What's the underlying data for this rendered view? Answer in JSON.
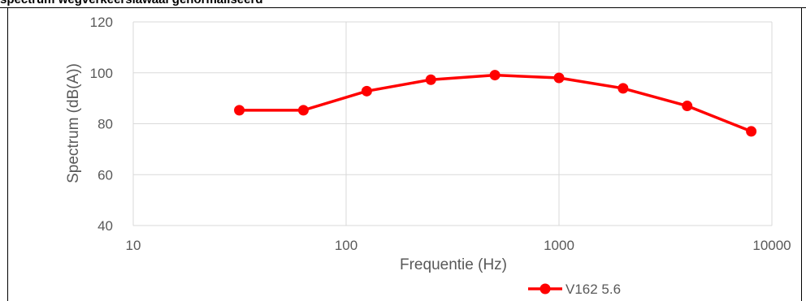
{
  "header_text": "spectrum wegverkeerslawaai genormaliseerd",
  "chart_data": {
    "type": "line",
    "title": "",
    "xlabel": "Frequentie (Hz)",
    "ylabel": "Spectrum (dB(A))",
    "x_scale": "log",
    "xlim": [
      10,
      10000
    ],
    "ylim": [
      40,
      120
    ],
    "x_ticks": [
      "10",
      "100",
      "1000",
      "10000"
    ],
    "y_ticks": [
      "40",
      "60",
      "80",
      "100",
      "120"
    ],
    "grid": true,
    "legend": "bottom",
    "series": [
      {
        "name": "V162 5.6",
        "color": "#ff0000",
        "x": [
          31.5,
          63,
          125,
          250,
          500,
          1000,
          2000,
          4000,
          8000
        ],
        "values": [
          85.3,
          85.3,
          92.8,
          97.3,
          99.1,
          98.0,
          93.9,
          87.0,
          77.0
        ]
      }
    ]
  }
}
